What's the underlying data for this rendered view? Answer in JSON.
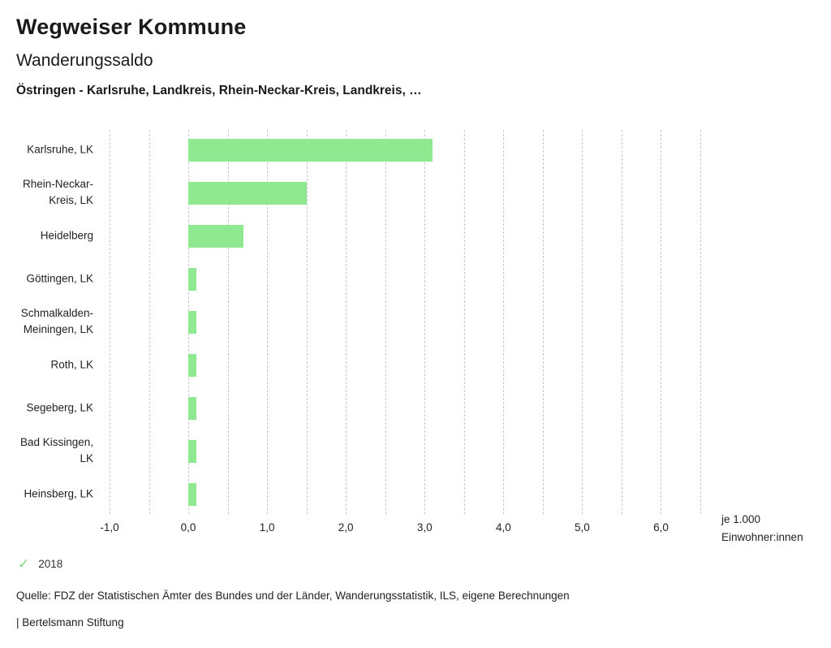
{
  "header": {
    "title": "Wegweiser Kommune",
    "subtitle": "Wanderungssaldo",
    "selection": "Östringen - Karlsruhe, Landkreis, Rhein-Neckar-Kreis, Landkreis, …"
  },
  "chart_data": {
    "type": "bar",
    "orientation": "horizontal",
    "title": "Wanderungssaldo",
    "categories": [
      "Karlsruhe, LK",
      "Rhein-Neckar-Kreis, LK",
      "Heidelberg",
      "Göttingen, LK",
      "Schmalkalden-Meiningen, LK",
      "Roth, LK",
      "Segeberg, LK",
      "Bad Kissingen, LK",
      "Heinsberg, LK"
    ],
    "series": [
      {
        "name": "2018",
        "values": [
          3.1,
          1.5,
          0.7,
          0.1,
          0.1,
          0.1,
          0.1,
          0.1,
          0.1
        ]
      }
    ],
    "xlim": [
      -1.0,
      6.5
    ],
    "x_ticks": [
      -1.0,
      0.0,
      1.0,
      2.0,
      3.0,
      4.0,
      5.0,
      6.0
    ],
    "x_tick_labels": [
      "-1,0",
      "0,0",
      "1,0",
      "2,0",
      "3,0",
      "4,0",
      "5,0",
      "6,0"
    ],
    "grid": "dashed-vertical-every-0.5",
    "legend_position": "bottom-left",
    "unit_label_line1": "je 1.000",
    "unit_label_line2": "Einwohner:innen",
    "bar_color": "#90e890"
  },
  "legend": {
    "year": "2018",
    "check_icon": "checkmark",
    "check_color": "#7ed87e"
  },
  "footer": {
    "source": "Quelle: FDZ der Statistischen Ämter des Bundes und der Länder, Wanderungsstatistik, ILS, eigene Berechnungen",
    "attribution": "| Bertelsmann Stiftung"
  }
}
